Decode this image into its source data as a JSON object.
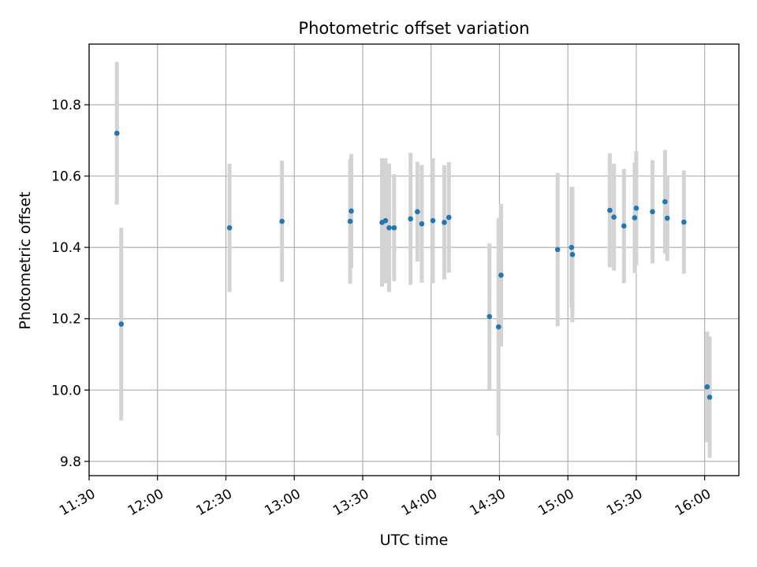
{
  "chart_data": {
    "type": "scatter",
    "title": "Photometric offset variation",
    "xlabel": "UTC time",
    "ylabel": "Photometric offset",
    "x_unit": "minutes after 00:00 UTC",
    "xlim": [
      690,
      975
    ],
    "ylim": [
      9.76,
      10.97
    ],
    "x_ticks": [
      {
        "value": 690,
        "label": "11:30"
      },
      {
        "value": 720,
        "label": "12:00"
      },
      {
        "value": 750,
        "label": "12:30"
      },
      {
        "value": 780,
        "label": "13:00"
      },
      {
        "value": 810,
        "label": "13:30"
      },
      {
        "value": 840,
        "label": "14:00"
      },
      {
        "value": 870,
        "label": "14:30"
      },
      {
        "value": 900,
        "label": "15:00"
      },
      {
        "value": 930,
        "label": "15:30"
      },
      {
        "value": 960,
        "label": "16:00"
      }
    ],
    "y_ticks": [
      {
        "value": 9.8,
        "label": "9.8"
      },
      {
        "value": 10.0,
        "label": "10.0"
      },
      {
        "value": 10.2,
        "label": "10.2"
      },
      {
        "value": 10.4,
        "label": "10.4"
      },
      {
        "value": 10.6,
        "label": "10.6"
      },
      {
        "value": 10.8,
        "label": "10.8"
      }
    ],
    "grid": true,
    "marker_color": "#1f77b4",
    "errorbar_color": "#d3d3d3",
    "points": [
      {
        "x": 702.2,
        "y": 10.72,
        "err": 0.2
      },
      {
        "x": 704.1,
        "y": 10.185,
        "err": 0.27
      },
      {
        "x": 751.6,
        "y": 10.455,
        "err": 0.18
      },
      {
        "x": 774.6,
        "y": 10.473,
        "err": 0.17
      },
      {
        "x": 804.5,
        "y": 10.473,
        "err": 0.175
      },
      {
        "x": 805.0,
        "y": 10.502,
        "err": 0.16
      },
      {
        "x": 818.5,
        "y": 10.47,
        "err": 0.18
      },
      {
        "x": 820.0,
        "y": 10.475,
        "err": 0.175
      },
      {
        "x": 821.6,
        "y": 10.455,
        "err": 0.18
      },
      {
        "x": 823.8,
        "y": 10.455,
        "err": 0.15
      },
      {
        "x": 831.0,
        "y": 10.48,
        "err": 0.185
      },
      {
        "x": 834.0,
        "y": 10.5,
        "err": 0.14
      },
      {
        "x": 835.9,
        "y": 10.466,
        "err": 0.165
      },
      {
        "x": 840.8,
        "y": 10.475,
        "err": 0.175
      },
      {
        "x": 845.8,
        "y": 10.47,
        "err": 0.16
      },
      {
        "x": 847.8,
        "y": 10.484,
        "err": 0.155
      },
      {
        "x": 865.6,
        "y": 10.206,
        "err": 0.205
      },
      {
        "x": 869.6,
        "y": 10.177,
        "err": 0.305
      },
      {
        "x": 870.7,
        "y": 10.322,
        "err": 0.2
      },
      {
        "x": 895.5,
        "y": 10.394,
        "err": 0.215
      },
      {
        "x": 901.6,
        "y": 10.4,
        "err": 0.17
      },
      {
        "x": 902.0,
        "y": 10.38,
        "err": 0.19
      },
      {
        "x": 918.4,
        "y": 10.504,
        "err": 0.16
      },
      {
        "x": 920.2,
        "y": 10.485,
        "err": 0.15
      },
      {
        "x": 924.6,
        "y": 10.46,
        "err": 0.16
      },
      {
        "x": 929.3,
        "y": 10.483,
        "err": 0.155
      },
      {
        "x": 930.0,
        "y": 10.51,
        "err": 0.16
      },
      {
        "x": 937.1,
        "y": 10.5,
        "err": 0.145
      },
      {
        "x": 942.6,
        "y": 10.528,
        "err": 0.145
      },
      {
        "x": 943.6,
        "y": 10.482,
        "err": 0.12
      },
      {
        "x": 950.9,
        "y": 10.471,
        "err": 0.145
      },
      {
        "x": 961.1,
        "y": 10.009,
        "err": 0.155
      },
      {
        "x": 962.2,
        "y": 9.98,
        "err": 0.17
      }
    ]
  }
}
